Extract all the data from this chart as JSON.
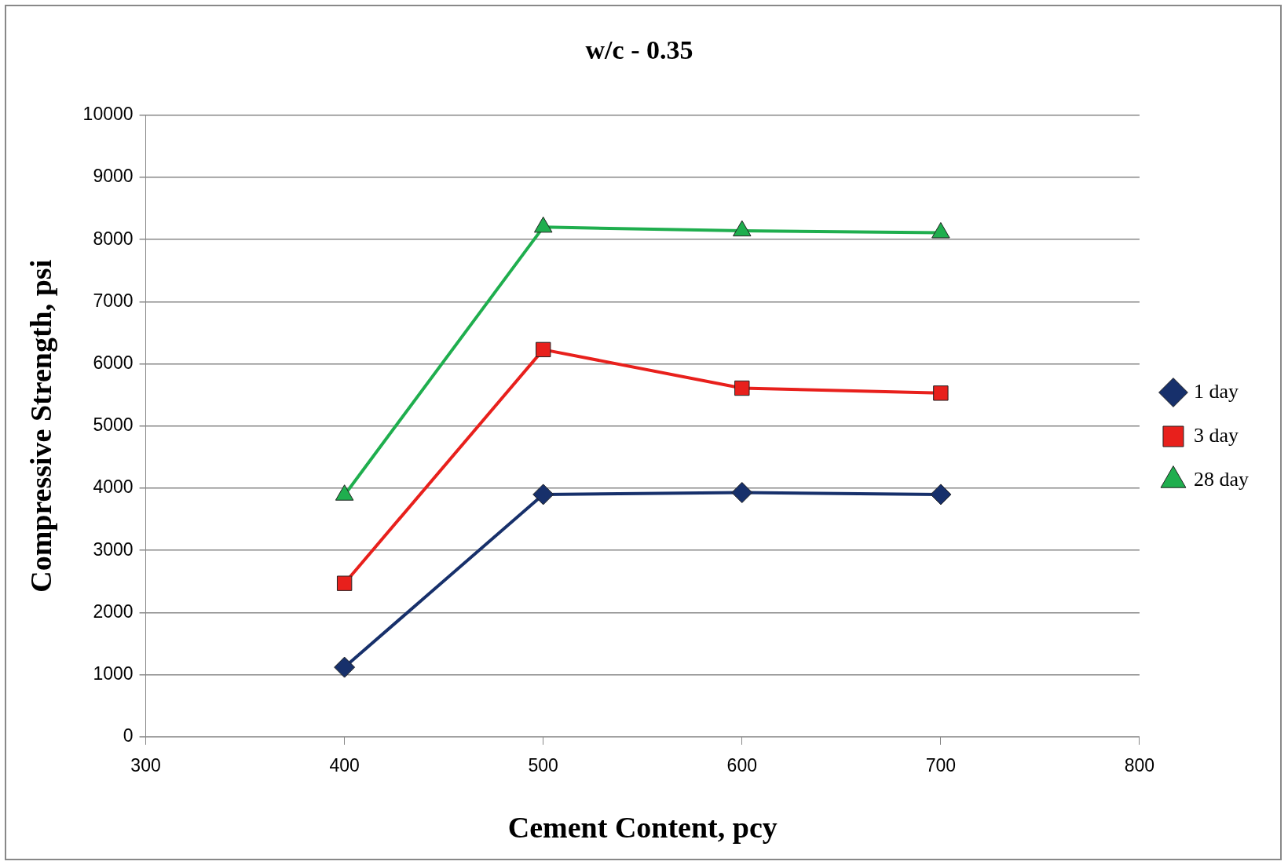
{
  "chart_data": {
    "type": "line",
    "title": "w/c - 0.35",
    "xlabel": "Cement Content, pcy",
    "ylabel": "Compressive Strength, psi",
    "x": [
      400,
      500,
      600,
      700
    ],
    "series": [
      {
        "name": "1 day",
        "color": "#17306b",
        "marker": "diamond",
        "values": [
          1120,
          3900,
          3930,
          3900
        ]
      },
      {
        "name": "3 day",
        "color": "#e8201c",
        "marker": "square",
        "values": [
          2470,
          6230,
          5610,
          5530
        ]
      },
      {
        "name": "28 day",
        "color": "#1fae4e",
        "marker": "triangle",
        "values": [
          3890,
          8200,
          8140,
          8110
        ]
      }
    ],
    "xlim": [
      300,
      800
    ],
    "xticks": [
      300,
      400,
      500,
      600,
      700,
      800
    ],
    "ylim": [
      0,
      10000
    ],
    "yticks": [
      0,
      1000,
      2000,
      3000,
      4000,
      5000,
      6000,
      7000,
      8000,
      9000,
      10000
    ],
    "grid": "y",
    "legend": "right",
    "line_style": "solid"
  }
}
